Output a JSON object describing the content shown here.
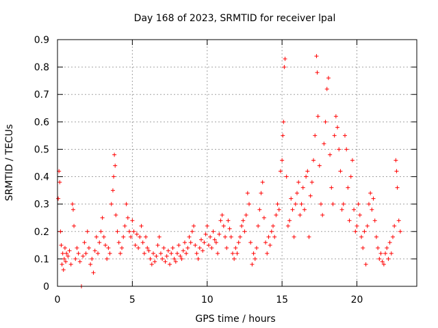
{
  "chart_data": {
    "type": "scatter",
    "title": "Day 168 of 2023, SRMTID for receiver lpal",
    "xlabel": "GPS time / hours",
    "ylabel": "SRMTID / TECUs",
    "xlim": [
      0,
      24
    ],
    "ylim": [
      0,
      0.9
    ],
    "xticks": [
      0,
      5,
      10,
      15,
      20
    ],
    "xtick_labels": [
      "0",
      "5",
      "10",
      "15",
      "20"
    ],
    "yticks": [
      0,
      0.1,
      0.2,
      0.3,
      0.4,
      0.5,
      0.6,
      0.7,
      0.8,
      0.9
    ],
    "ytick_labels": [
      "0",
      "0.1",
      "0.2",
      "0.3",
      "0.4",
      "0.5",
      "0.6",
      "0.7",
      "0.8",
      "0.9"
    ],
    "grid": true,
    "marker": "+",
    "marker_color": "#ff0000",
    "series": [
      {
        "name": "SRMTID",
        "points": [
          [
            0.05,
            0.32
          ],
          [
            0.1,
            0.42
          ],
          [
            0.15,
            0.38
          ],
          [
            0.2,
            0.2
          ],
          [
            0.25,
            0.15
          ],
          [
            0.3,
            0.08
          ],
          [
            0.35,
            0.12
          ],
          [
            0.4,
            0.06
          ],
          [
            0.45,
            0.1
          ],
          [
            0.5,
            0.14
          ],
          [
            0.55,
            0.09
          ],
          [
            0.6,
            0.12
          ],
          [
            0.7,
            0.11
          ],
          [
            0.8,
            0.13
          ],
          [
            0.9,
            0.08
          ],
          [
            1.0,
            0.3
          ],
          [
            1.05,
            0.28
          ],
          [
            1.1,
            0.22
          ],
          [
            1.2,
            0.1
          ],
          [
            1.3,
            0.14
          ],
          [
            1.4,
            0.12
          ],
          [
            1.5,
            0.09
          ],
          [
            1.6,
            0.0
          ],
          [
            1.7,
            0.11
          ],
          [
            1.8,
            0.16
          ],
          [
            1.9,
            0.12
          ],
          [
            2.0,
            0.2
          ],
          [
            2.1,
            0.14
          ],
          [
            2.2,
            0.08
          ],
          [
            2.3,
            0.1
          ],
          [
            2.4,
            0.05
          ],
          [
            2.5,
            0.13
          ],
          [
            2.6,
            0.18
          ],
          [
            2.7,
            0.12
          ],
          [
            2.8,
            0.16
          ],
          [
            2.9,
            0.2
          ],
          [
            3.0,
            0.25
          ],
          [
            3.1,
            0.18
          ],
          [
            3.2,
            0.15
          ],
          [
            3.3,
            0.1
          ],
          [
            3.4,
            0.14
          ],
          [
            3.5,
            0.12
          ],
          [
            3.6,
            0.3
          ],
          [
            3.7,
            0.35
          ],
          [
            3.75,
            0.4
          ],
          [
            3.8,
            0.48
          ],
          [
            3.85,
            0.44
          ],
          [
            3.9,
            0.26
          ],
          [
            4.0,
            0.2
          ],
          [
            4.1,
            0.16
          ],
          [
            4.2,
            0.12
          ],
          [
            4.3,
            0.14
          ],
          [
            4.4,
            0.18
          ],
          [
            4.5,
            0.22
          ],
          [
            4.6,
            0.3
          ],
          [
            4.7,
            0.25
          ],
          [
            4.8,
            0.2
          ],
          [
            4.9,
            0.18
          ],
          [
            5.0,
            0.24
          ],
          [
            5.1,
            0.2
          ],
          [
            5.2,
            0.15
          ],
          [
            5.3,
            0.19
          ],
          [
            5.4,
            0.14
          ],
          [
            5.5,
            0.18
          ],
          [
            5.6,
            0.22
          ],
          [
            5.7,
            0.16
          ],
          [
            5.8,
            0.12
          ],
          [
            5.9,
            0.18
          ],
          [
            6.0,
            0.14
          ],
          [
            6.1,
            0.13
          ],
          [
            6.2,
            0.1
          ],
          [
            6.3,
            0.08
          ],
          [
            6.4,
            0.12
          ],
          [
            6.5,
            0.09
          ],
          [
            6.6,
            0.11
          ],
          [
            6.7,
            0.15
          ],
          [
            6.8,
            0.18
          ],
          [
            6.9,
            0.12
          ],
          [
            7.0,
            0.1
          ],
          [
            7.1,
            0.14
          ],
          [
            7.2,
            0.09
          ],
          [
            7.3,
            0.11
          ],
          [
            7.4,
            0.13
          ],
          [
            7.5,
            0.08
          ],
          [
            7.6,
            0.12
          ],
          [
            7.7,
            0.14
          ],
          [
            7.8,
            0.1
          ],
          [
            7.9,
            0.09
          ],
          [
            8.0,
            0.12
          ],
          [
            8.1,
            0.15
          ],
          [
            8.2,
            0.11
          ],
          [
            8.3,
            0.1
          ],
          [
            8.4,
            0.13
          ],
          [
            8.5,
            0.16
          ],
          [
            8.6,
            0.12
          ],
          [
            8.7,
            0.14
          ],
          [
            8.8,
            0.18
          ],
          [
            8.9,
            0.16
          ],
          [
            9.0,
            0.2
          ],
          [
            9.1,
            0.22
          ],
          [
            9.2,
            0.15
          ],
          [
            9.3,
            0.12
          ],
          [
            9.4,
            0.1
          ],
          [
            9.5,
            0.14
          ],
          [
            9.6,
            0.17
          ],
          [
            9.7,
            0.13
          ],
          [
            9.8,
            0.16
          ],
          [
            9.9,
            0.19
          ],
          [
            10.0,
            0.22
          ],
          [
            10.1,
            0.15
          ],
          [
            10.2,
            0.18
          ],
          [
            10.3,
            0.14
          ],
          [
            10.4,
            0.2
          ],
          [
            10.5,
            0.17
          ],
          [
            10.6,
            0.16
          ],
          [
            10.7,
            0.12
          ],
          [
            10.8,
            0.19
          ],
          [
            10.9,
            0.24
          ],
          [
            11.0,
            0.26
          ],
          [
            11.1,
            0.22
          ],
          [
            11.2,
            0.18
          ],
          [
            11.3,
            0.14
          ],
          [
            11.4,
            0.24
          ],
          [
            11.5,
            0.21
          ],
          [
            11.6,
            0.18
          ],
          [
            11.7,
            0.12
          ],
          [
            11.8,
            0.1
          ],
          [
            11.9,
            0.14
          ],
          [
            12.0,
            0.12
          ],
          [
            12.1,
            0.16
          ],
          [
            12.2,
            0.18
          ],
          [
            12.3,
            0.22
          ],
          [
            12.4,
            0.24
          ],
          [
            12.5,
            0.2
          ],
          [
            12.6,
            0.26
          ],
          [
            12.7,
            0.34
          ],
          [
            12.8,
            0.3
          ],
          [
            12.9,
            0.16
          ],
          [
            13.0,
            0.08
          ],
          [
            13.1,
            0.12
          ],
          [
            13.2,
            0.1
          ],
          [
            13.3,
            0.14
          ],
          [
            13.4,
            0.22
          ],
          [
            13.5,
            0.28
          ],
          [
            13.6,
            0.34
          ],
          [
            13.7,
            0.38
          ],
          [
            13.8,
            0.25
          ],
          [
            13.9,
            0.16
          ],
          [
            14.0,
            0.12
          ],
          [
            14.1,
            0.18
          ],
          [
            14.2,
            0.15
          ],
          [
            14.3,
            0.2
          ],
          [
            14.4,
            0.22
          ],
          [
            14.5,
            0.18
          ],
          [
            14.6,
            0.26
          ],
          [
            14.7,
            0.3
          ],
          [
            14.8,
            0.28
          ],
          [
            14.9,
            0.42
          ],
          [
            15.0,
            0.46
          ],
          [
            15.05,
            0.55
          ],
          [
            15.1,
            0.6
          ],
          [
            15.15,
            0.8
          ],
          [
            15.2,
            0.83
          ],
          [
            15.3,
            0.4
          ],
          [
            15.4,
            0.22
          ],
          [
            15.5,
            0.24
          ],
          [
            15.6,
            0.32
          ],
          [
            15.7,
            0.28
          ],
          [
            15.8,
            0.18
          ],
          [
            15.9,
            0.3
          ],
          [
            16.0,
            0.34
          ],
          [
            16.1,
            0.38
          ],
          [
            16.2,
            0.26
          ],
          [
            16.3,
            0.3
          ],
          [
            16.4,
            0.36
          ],
          [
            16.5,
            0.28
          ],
          [
            16.6,
            0.4
          ],
          [
            16.7,
            0.42
          ],
          [
            16.8,
            0.18
          ],
          [
            16.9,
            0.33
          ],
          [
            17.0,
            0.38
          ],
          [
            17.1,
            0.46
          ],
          [
            17.2,
            0.55
          ],
          [
            17.3,
            0.84
          ],
          [
            17.35,
            0.78
          ],
          [
            17.4,
            0.62
          ],
          [
            17.5,
            0.44
          ],
          [
            17.6,
            0.3
          ],
          [
            17.7,
            0.26
          ],
          [
            17.8,
            0.52
          ],
          [
            17.9,
            0.6
          ],
          [
            18.0,
            0.72
          ],
          [
            18.1,
            0.76
          ],
          [
            18.2,
            0.48
          ],
          [
            18.3,
            0.36
          ],
          [
            18.4,
            0.3
          ],
          [
            18.5,
            0.55
          ],
          [
            18.6,
            0.62
          ],
          [
            18.7,
            0.58
          ],
          [
            18.8,
            0.5
          ],
          [
            18.9,
            0.42
          ],
          [
            19.0,
            0.28
          ],
          [
            19.1,
            0.3
          ],
          [
            19.2,
            0.55
          ],
          [
            19.3,
            0.5
          ],
          [
            19.4,
            0.36
          ],
          [
            19.5,
            0.24
          ],
          [
            19.6,
            0.4
          ],
          [
            19.7,
            0.46
          ],
          [
            19.8,
            0.28
          ],
          [
            19.9,
            0.2
          ],
          [
            20.0,
            0.22
          ],
          [
            20.1,
            0.3
          ],
          [
            20.2,
            0.26
          ],
          [
            20.3,
            0.18
          ],
          [
            20.4,
            0.14
          ],
          [
            20.5,
            0.2
          ],
          [
            20.6,
            0.08
          ],
          [
            20.7,
            0.22
          ],
          [
            20.8,
            0.3
          ],
          [
            20.9,
            0.34
          ],
          [
            21.0,
            0.28
          ],
          [
            21.1,
            0.32
          ],
          [
            21.2,
            0.24
          ],
          [
            21.3,
            0.18
          ],
          [
            21.4,
            0.14
          ],
          [
            21.5,
            0.1
          ],
          [
            21.6,
            0.12
          ],
          [
            21.7,
            0.09
          ],
          [
            21.8,
            0.08
          ],
          [
            21.9,
            0.12
          ],
          [
            22.0,
            0.14
          ],
          [
            22.1,
            0.1
          ],
          [
            22.2,
            0.16
          ],
          [
            22.3,
            0.12
          ],
          [
            22.4,
            0.18
          ],
          [
            22.5,
            0.22
          ],
          [
            22.6,
            0.46
          ],
          [
            22.65,
            0.42
          ],
          [
            22.7,
            0.36
          ],
          [
            22.8,
            0.24
          ],
          [
            22.9,
            0.2
          ]
        ]
      }
    ]
  }
}
